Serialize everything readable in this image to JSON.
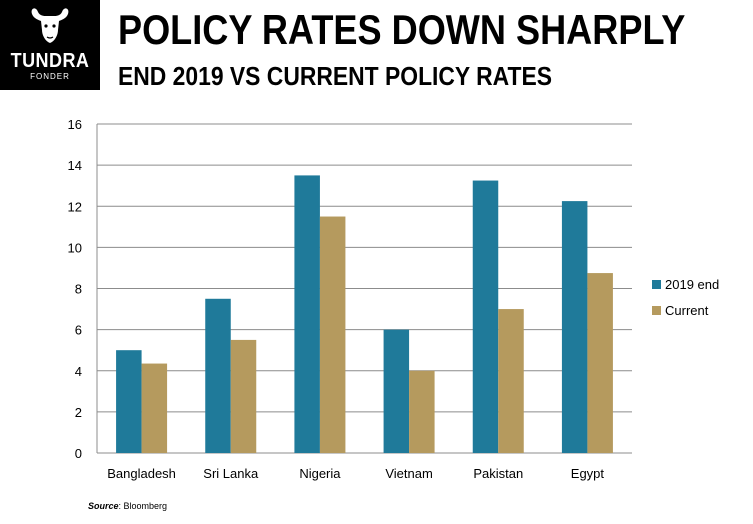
{
  "logo": {
    "name": "TUNDRA",
    "sub": "FONDER"
  },
  "source": {
    "label": "Source",
    "text": ": Bloomberg"
  },
  "chart_data": {
    "type": "bar",
    "title": "POLICY RATES DOWN SHARPLY",
    "subtitle": "END 2019 VS CURRENT POLICY RATES",
    "xlabel": "",
    "ylabel": "",
    "categories": [
      "Bangladesh",
      "Sri Lanka",
      "Nigeria",
      "Vietnam",
      "Pakistan",
      "Egypt"
    ],
    "series": [
      {
        "name": "2019 end",
        "color": "#1f7a9a",
        "values": [
          5.0,
          7.5,
          13.5,
          6.0,
          13.25,
          12.25
        ]
      },
      {
        "name": "Current",
        "color": "#b59a5e",
        "values": [
          4.35,
          5.5,
          11.5,
          4.0,
          7.0,
          8.75
        ]
      }
    ],
    "ylim": [
      0,
      16
    ],
    "yticks": [
      0,
      2,
      4,
      6,
      8,
      10,
      12,
      14,
      16
    ],
    "grid": true,
    "legend": "right"
  }
}
